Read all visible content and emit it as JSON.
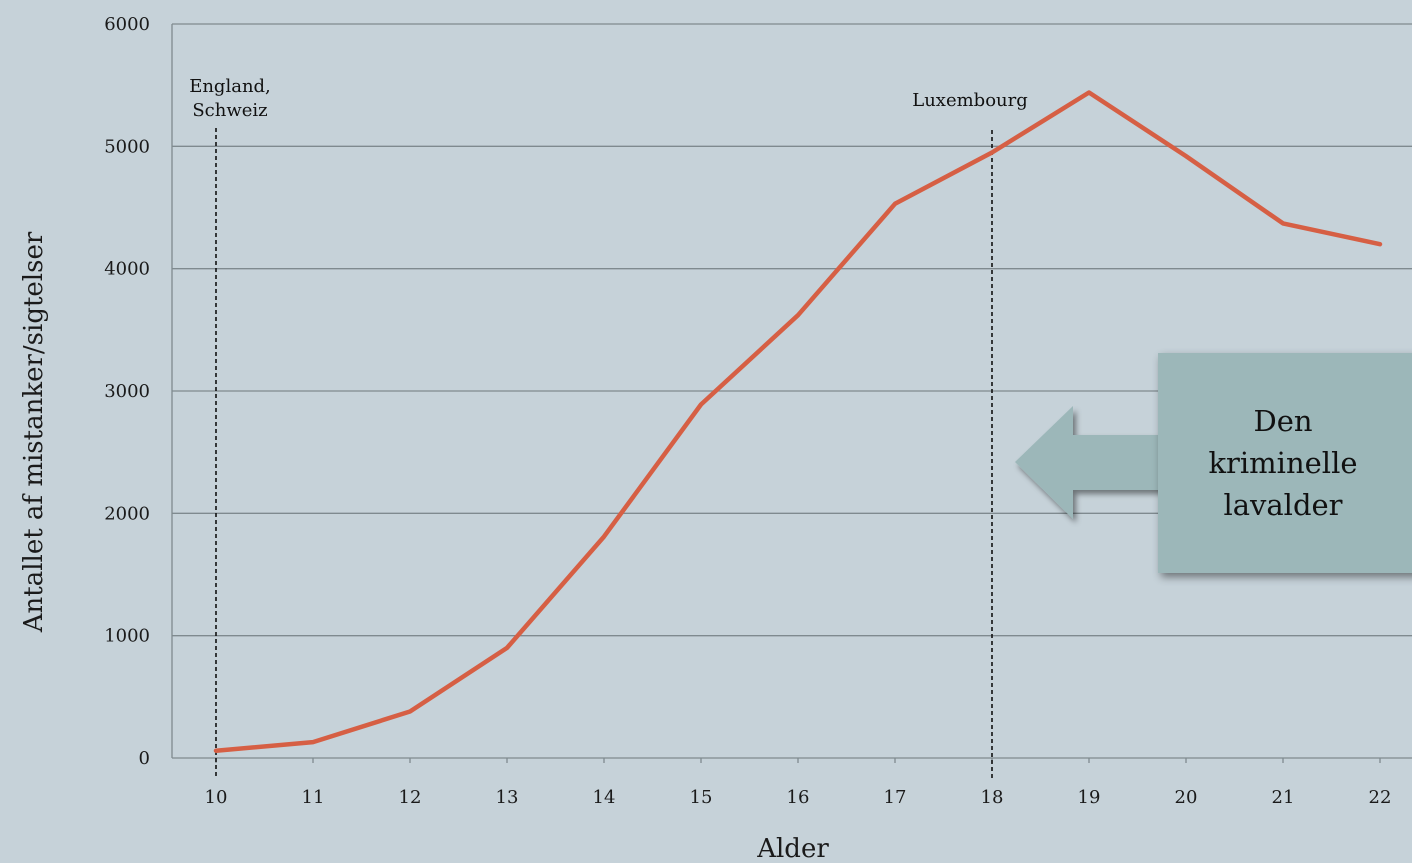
{
  "chart_data": {
    "type": "line",
    "x": [
      10,
      11,
      12,
      13,
      14,
      15,
      16,
      17,
      18,
      19,
      20,
      21,
      22
    ],
    "series": [
      {
        "values": [
          60,
          130,
          380,
          900,
          1810,
          2890,
          3620,
          4530,
          4950,
          5440,
          4920,
          4370,
          4200
        ]
      }
    ],
    "xlabel": "Alder",
    "ylabel": "Antallet af mistanker/sigtelser",
    "ylim": [
      0,
      6000
    ],
    "yticks": [
      0,
      1000,
      2000,
      3000,
      4000,
      5000,
      6000
    ],
    "ytick_labels": [
      "0",
      "1000",
      "2000",
      "3000",
      "4000",
      "5000",
      "6000"
    ],
    "xtick_labels": [
      "10",
      "11",
      "12",
      "13",
      "14",
      "15",
      "16",
      "17",
      "18",
      "19",
      "20",
      "21",
      "22"
    ],
    "grid": true,
    "line_color": "#d65f44",
    "annotations": [
      {
        "x": 10,
        "label_lines": [
          "England,",
          "Schweiz"
        ]
      },
      {
        "x": 18,
        "label_lines": [
          "Luxembourg"
        ]
      }
    ]
  },
  "callout": {
    "lines": [
      "Den",
      "kriminelle",
      "lavalder"
    ],
    "box_color": "#9cb7b9",
    "arrow_color": "#9cb7b9"
  }
}
